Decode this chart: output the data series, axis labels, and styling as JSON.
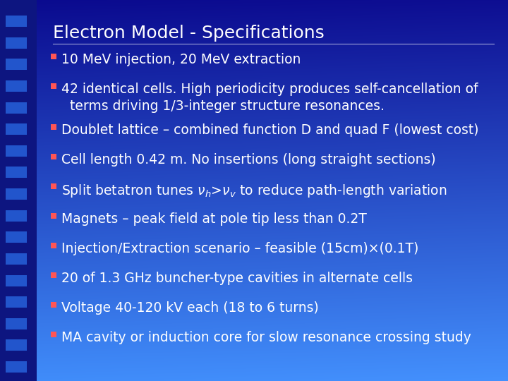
{
  "title": "Electron Model - Specifications",
  "title_color": "#FFFFFF",
  "title_fontsize": 18,
  "bullet_color": "#FF5555",
  "text_color": "#FFFFFF",
  "text_fontsize": 13.5,
  "bullet_char": "■",
  "bg_dark": "#0a0a8f",
  "bg_light": "#4499ff",
  "stripe_dark": "#0a0a80",
  "stripe_square": "#3388ee",
  "bullets": [
    {
      "text": "10 MeV injection, 20 MeV extraction",
      "has_subscript": false,
      "wrap": false
    },
    {
      "text": "42 identical cells. High periodicity produces self-cancellation of\n  terms driving 1/3-integer structure resonances.",
      "has_subscript": false,
      "wrap": true
    },
    {
      "text": "Doublet lattice – combined function D and quad F (lowest cost)",
      "has_subscript": false,
      "wrap": false
    },
    {
      "text": "Cell length 0.42 m. No insertions (long straight sections)",
      "has_subscript": false,
      "wrap": false
    },
    {
      "text": "Split betatron tunes SUBSCRIPT to reduce path-length variation",
      "has_subscript": true,
      "wrap": false
    },
    {
      "text": "Magnets – peak field at pole tip less than 0.2T",
      "has_subscript": false,
      "wrap": false
    },
    {
      "text": "Injection/Extraction scenario – feasible (15cm)×(0.1T)",
      "has_subscript": false,
      "wrap": false
    },
    {
      "text": "20 of 1.3 GHz buncher-type cavities in alternate cells",
      "has_subscript": false,
      "wrap": false
    },
    {
      "text": "Voltage 40-120 kV each (18 to 6 turns)",
      "has_subscript": false,
      "wrap": false
    },
    {
      "text": "MA cavity or induction core for slow resonance crossing study",
      "has_subscript": false,
      "wrap": false
    }
  ]
}
